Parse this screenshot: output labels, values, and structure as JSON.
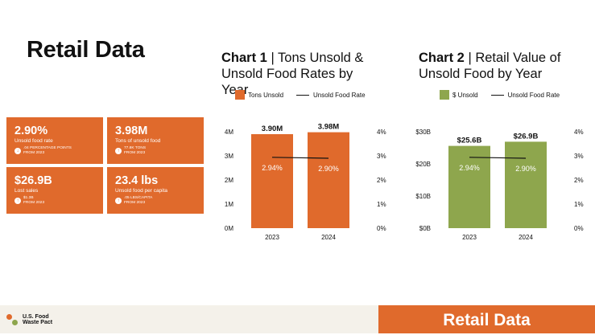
{
  "page_title": "Retail Data",
  "stats": [
    {
      "value": "2.90%",
      "label": "Unsold food rate",
      "change": ".04 PERCENTAGE POINTS",
      "period": "FROM 2023"
    },
    {
      "value": "3.98M",
      "label": "Tons of unsold food",
      "change": "77.8K TONS",
      "period": "FROM 2023"
    },
    {
      "value": "$26.9B",
      "label": "Lost sales",
      "change": "$1.3B",
      "period": "FROM 2023"
    },
    {
      "value": "23.4 lbs",
      "label": "Unsold food per capita",
      "change": ".05 LBS/CAPITA",
      "period": "FROM 2023"
    }
  ],
  "chart1_heading": {
    "prefix": "Chart 1",
    "title": " | Tons Unsold & Unsold Food Rates by Year"
  },
  "chart2_heading": {
    "prefix": "Chart 2",
    "title": " | Retail Value of Unsold Food by Year"
  },
  "chart_data": [
    {
      "type": "bar",
      "title": "Chart 1 | Tons Unsold & Unsold Food Rates by Year",
      "categories": [
        "2023",
        "2024"
      ],
      "series": [
        {
          "name": "Tons Unsold",
          "kind": "bar",
          "values": [
            3.9,
            3.98
          ],
          "labels": [
            "3.90M",
            "3.98M"
          ],
          "color": "#e06a2c"
        },
        {
          "name": "Unsold Food Rate",
          "kind": "line",
          "axis": "right",
          "values": [
            2.94,
            2.9
          ],
          "labels": [
            "2.94%",
            "2.90%"
          ],
          "color": "#111111"
        }
      ],
      "left_axis": {
        "min": 0,
        "max": 4,
        "ticks": [
          "0M",
          "1M",
          "2M",
          "3M",
          "4M"
        ]
      },
      "right_axis": {
        "min": 0,
        "max": 4,
        "ticks": [
          "0%",
          "1%",
          "2%",
          "3%",
          "4%"
        ]
      },
      "legend": "top"
    },
    {
      "type": "bar",
      "title": "Chart 2 | Retail Value of Unsold Food by Year",
      "categories": [
        "2023",
        "2024"
      ],
      "series": [
        {
          "name": "$ Unsold",
          "kind": "bar",
          "values": [
            25.6,
            26.9
          ],
          "labels": [
            "$25.6B",
            "$26.9B"
          ],
          "color": "#8ea64d"
        },
        {
          "name": "Unsold Food Rate",
          "kind": "line",
          "axis": "right",
          "values": [
            2.94,
            2.9
          ],
          "labels": [
            "2.94%",
            "2.90%"
          ],
          "color": "#111111"
        }
      ],
      "left_axis": {
        "min": 0,
        "max": 30,
        "ticks": [
          "$0B",
          "$10B",
          "$20B",
          "$30B"
        ]
      },
      "right_axis": {
        "min": 0,
        "max": 4,
        "ticks": [
          "0%",
          "1%",
          "2%",
          "3%",
          "4%"
        ]
      },
      "legend": "top"
    }
  ],
  "footer": {
    "logo_line1": "U.S. Food",
    "logo_line2": "Waste Pact",
    "banner": "Retail Data"
  },
  "colors": {
    "accent": "#e06a2c",
    "green": "#8ea64d"
  }
}
